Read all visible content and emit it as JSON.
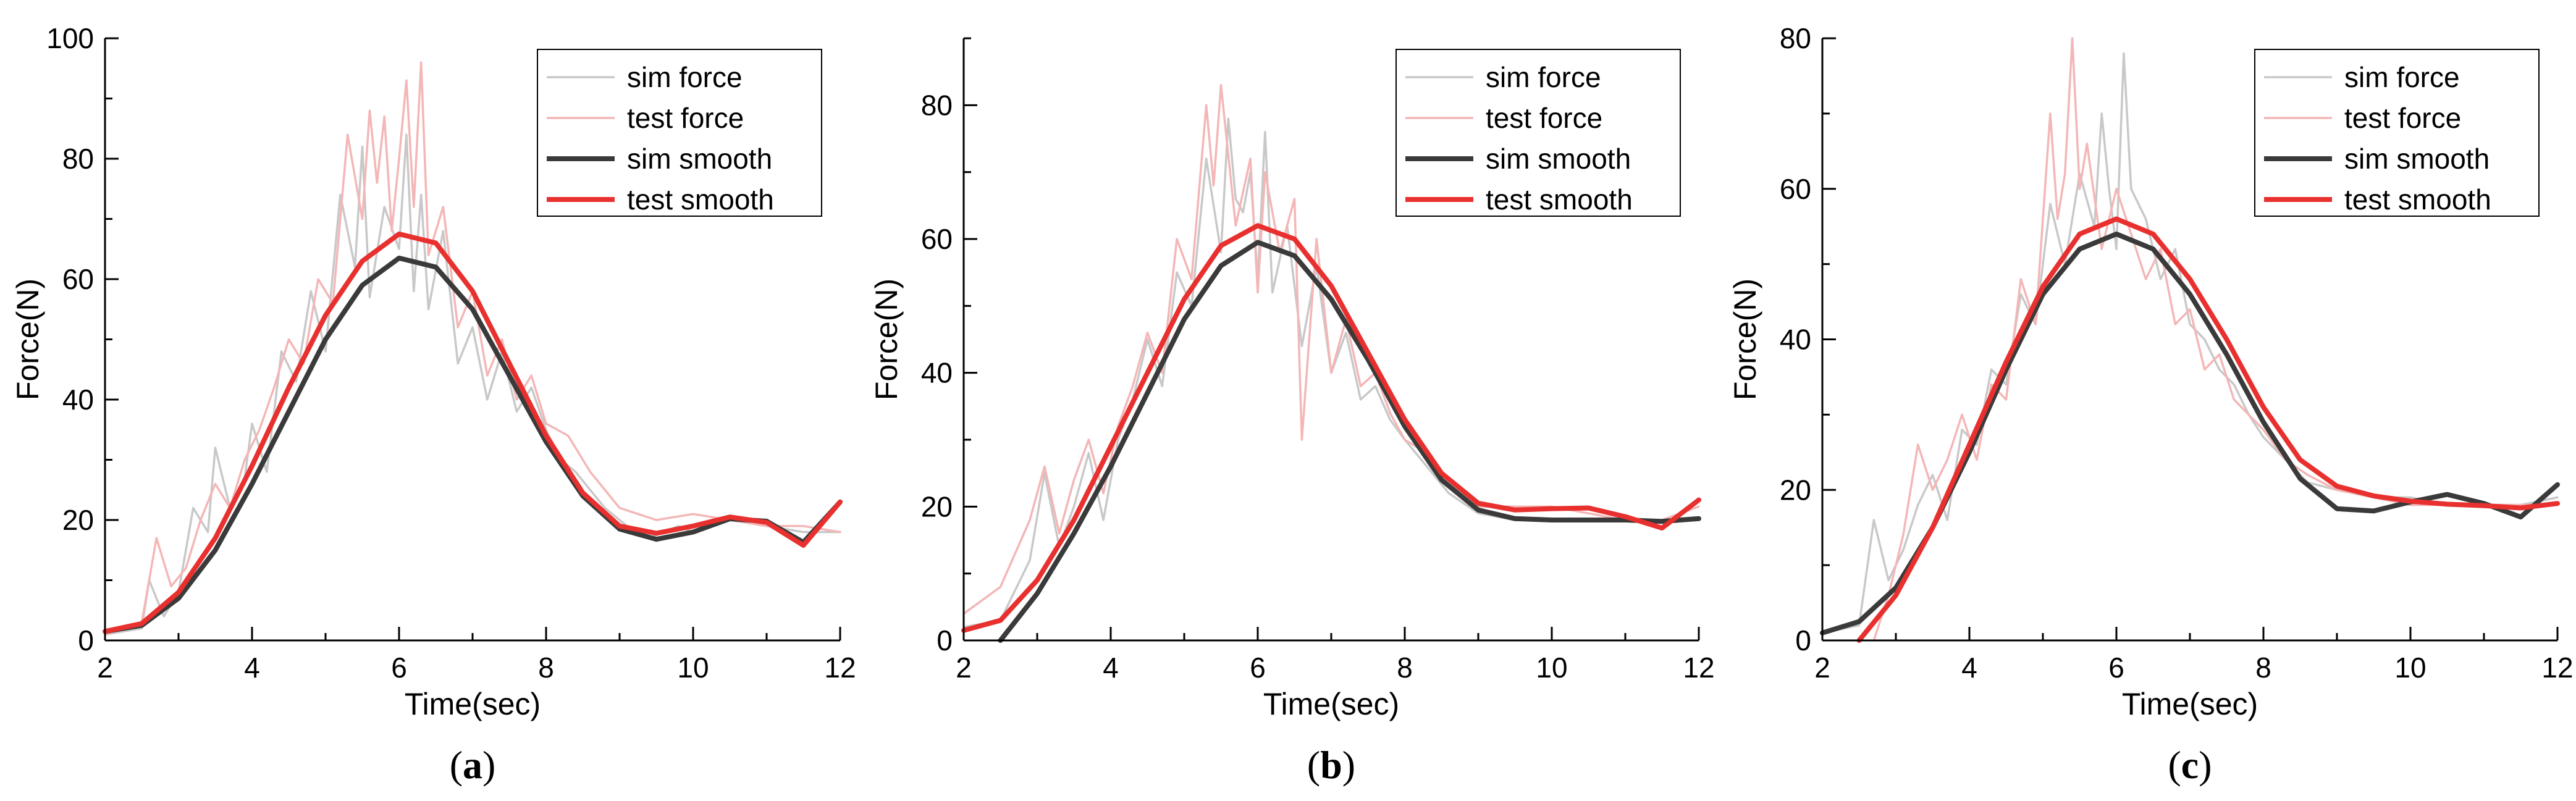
{
  "chart_data": [
    {
      "type": "line",
      "caption_letter": "a",
      "xlabel": "Time(sec)",
      "ylabel": "Force(N)",
      "xlim": [
        2,
        12
      ],
      "ylim": [
        0,
        100
      ],
      "xticks": [
        2,
        4,
        6,
        8,
        10,
        12
      ],
      "yticks": [
        0,
        20,
        40,
        60,
        80,
        100
      ],
      "legend_position": "top-right",
      "series": [
        {
          "name": "sim force",
          "color": "#c8c8c8",
          "x": [
            2,
            2.5,
            2.6,
            2.8,
            3.0,
            3.2,
            3.4,
            3.5,
            3.7,
            3.9,
            4.0,
            4.2,
            4.4,
            4.6,
            4.8,
            5.0,
            5.2,
            5.4,
            5.5,
            5.6,
            5.8,
            6.0,
            6.1,
            6.2,
            6.3,
            6.4,
            6.6,
            6.8,
            7.0,
            7.2,
            7.4,
            7.6,
            7.8,
            8.0,
            8.2,
            8.4,
            8.6,
            8.8,
            9.0,
            9.2,
            9.4,
            9.6,
            9.8,
            10.0,
            10.5,
            11.0,
            11.5,
            12.0
          ],
          "y": [
            1,
            2,
            10,
            4,
            8,
            22,
            18,
            32,
            22,
            27,
            36,
            28,
            48,
            43,
            58,
            48,
            74,
            62,
            82,
            57,
            72,
            65,
            84,
            58,
            74,
            55,
            68,
            46,
            52,
            40,
            48,
            38,
            42,
            35,
            30,
            28,
            25,
            22,
            20,
            18,
            17,
            18,
            19,
            18,
            20,
            19,
            18,
            18
          ]
        },
        {
          "name": "test force",
          "color": "#f4b6b6",
          "x": [
            2,
            2.5,
            2.7,
            2.9,
            3.1,
            3.3,
            3.5,
            3.7,
            3.9,
            4.1,
            4.3,
            4.5,
            4.7,
            4.9,
            5.1,
            5.3,
            5.5,
            5.6,
            5.7,
            5.8,
            5.9,
            6.0,
            6.1,
            6.2,
            6.3,
            6.4,
            6.6,
            6.8,
            7.0,
            7.2,
            7.4,
            7.6,
            7.8,
            8.0,
            8.3,
            8.6,
            9.0,
            9.5,
            10.0,
            10.5,
            11.0,
            11.5,
            12.0
          ],
          "y": [
            1,
            3,
            17,
            9,
            12,
            20,
            26,
            22,
            30,
            35,
            42,
            50,
            46,
            60,
            56,
            84,
            70,
            88,
            76,
            87,
            68,
            80,
            93,
            72,
            96,
            64,
            72,
            52,
            58,
            44,
            50,
            40,
            44,
            36,
            34,
            28,
            22,
            20,
            21,
            20,
            19,
            19,
            18
          ]
        },
        {
          "name": "sim smooth",
          "color": "#3a3a3a",
          "x": [
            2,
            2.5,
            3.0,
            3.5,
            4.0,
            4.5,
            5.0,
            5.5,
            6.0,
            6.5,
            7.0,
            7.5,
            8.0,
            8.5,
            9.0,
            9.5,
            10.0,
            10.5,
            11.0,
            11.5,
            12.0
          ],
          "y": [
            1.5,
            2.5,
            7,
            15,
            26,
            38,
            50,
            59,
            63.5,
            62,
            55,
            44,
            33,
            24,
            18.5,
            16.8,
            18,
            20.2,
            19.8,
            16.3,
            23
          ]
        },
        {
          "name": "test smooth",
          "color": "#e8302f",
          "x": [
            2,
            2.5,
            3.0,
            3.5,
            4.0,
            4.5,
            5.0,
            5.5,
            6.0,
            6.5,
            7.0,
            7.5,
            8.0,
            8.5,
            9.0,
            9.5,
            10.0,
            10.5,
            11.0,
            11.5,
            12.0
          ],
          "y": [
            1.5,
            2.8,
            8,
            17,
            29,
            42,
            54,
            63,
            67.5,
            66,
            58,
            46,
            34,
            24.5,
            19,
            17.8,
            19,
            20.5,
            19.6,
            15.8,
            23
          ]
        }
      ]
    },
    {
      "type": "line",
      "caption_letter": "b",
      "xlabel": "Time(sec)",
      "ylabel": "Force(N)",
      "xlim": [
        2,
        12
      ],
      "ylim": [
        0,
        90
      ],
      "xticks": [
        2,
        4,
        6,
        8,
        10,
        12
      ],
      "yticks": [
        0,
        20,
        40,
        60,
        80
      ],
      "legend_position": "top-right",
      "series": [
        {
          "name": "sim force",
          "color": "#c8c8c8",
          "x": [
            2,
            2.5,
            2.9,
            3.1,
            3.3,
            3.5,
            3.7,
            3.9,
            4.1,
            4.3,
            4.5,
            4.7,
            4.9,
            5.1,
            5.3,
            5.5,
            5.6,
            5.7,
            5.8,
            5.9,
            6.0,
            6.1,
            6.2,
            6.4,
            6.6,
            6.8,
            7.0,
            7.2,
            7.4,
            7.6,
            7.8,
            8.0,
            8.3,
            8.6,
            9.0,
            9.5,
            10.0,
            10.5,
            11.0,
            11.5,
            12.0
          ],
          "y": [
            2,
            3,
            12,
            25,
            14,
            20,
            28,
            18,
            30,
            36,
            45,
            38,
            55,
            50,
            72,
            58,
            78,
            66,
            64,
            70,
            54,
            76,
            52,
            62,
            44,
            56,
            40,
            46,
            36,
            38,
            33,
            30,
            26,
            22,
            19,
            18,
            18,
            18,
            18,
            18,
            18
          ]
        },
        {
          "name": "test force",
          "color": "#f4b6b6",
          "x": [
            2,
            2.5,
            2.9,
            3.1,
            3.3,
            3.5,
            3.7,
            3.9,
            4.1,
            4.3,
            4.5,
            4.7,
            4.9,
            5.1,
            5.3,
            5.4,
            5.5,
            5.7,
            5.9,
            6.0,
            6.1,
            6.3,
            6.5,
            6.6,
            6.8,
            7.0,
            7.2,
            7.4,
            7.6,
            7.8,
            8.0,
            8.3,
            8.6,
            9.0,
            9.5,
            10.0,
            10.5,
            11.0,
            11.5,
            12.0
          ],
          "y": [
            4,
            8,
            18,
            26,
            16,
            24,
            30,
            22,
            32,
            38,
            46,
            40,
            60,
            54,
            80,
            68,
            83,
            62,
            72,
            52,
            70,
            58,
            66,
            30,
            60,
            40,
            48,
            38,
            40,
            34,
            30,
            28,
            24,
            20,
            20,
            20,
            19,
            18,
            18,
            20
          ]
        },
        {
          "name": "sim smooth",
          "color": "#3a3a3a",
          "x": [
            2.5,
            3.0,
            3.5,
            4.0,
            4.5,
            5.0,
            5.5,
            6.0,
            6.5,
            7.0,
            7.5,
            8.0,
            8.5,
            9.0,
            9.5,
            10.0,
            10.5,
            11.0,
            11.5,
            12.0
          ],
          "y": [
            0,
            7,
            16,
            26,
            37,
            48,
            56,
            59.5,
            57.5,
            51,
            42,
            32,
            24,
            19.5,
            18.2,
            18,
            18,
            18,
            17.8,
            18.2
          ]
        },
        {
          "name": "test smooth",
          "color": "#e8302f",
          "x": [
            2,
            2.5,
            3.0,
            3.5,
            4.0,
            4.5,
            5.0,
            5.5,
            6.0,
            6.5,
            7.0,
            7.5,
            8.0,
            8.5,
            9.0,
            9.5,
            10.0,
            10.5,
            11.0,
            11.5,
            12.0
          ],
          "y": [
            1.5,
            3,
            9,
            18,
            29,
            40,
            51,
            59,
            62,
            60,
            53,
            43,
            33,
            25,
            20.5,
            19.5,
            19.7,
            19.8,
            18.5,
            16.8,
            21
          ]
        }
      ]
    },
    {
      "type": "line",
      "caption_letter": "c",
      "xlabel": "Time(sec)",
      "ylabel": "Force(N)",
      "xlim": [
        2,
        12
      ],
      "ylim": [
        0,
        80
      ],
      "xticks": [
        2,
        4,
        6,
        8,
        10,
        12
      ],
      "yticks": [
        0,
        20,
        40,
        60,
        80
      ],
      "legend_position": "top-right",
      "series": [
        {
          "name": "sim force",
          "color": "#c8c8c8",
          "x": [
            2,
            2.5,
            2.7,
            2.9,
            3.1,
            3.3,
            3.5,
            3.7,
            3.9,
            4.1,
            4.3,
            4.5,
            4.7,
            4.9,
            5.1,
            5.3,
            5.5,
            5.7,
            5.8,
            5.9,
            6.0,
            6.1,
            6.2,
            6.4,
            6.6,
            6.8,
            7.0,
            7.2,
            7.4,
            7.6,
            7.8,
            8.0,
            8.3,
            8.6,
            9.0,
            9.5,
            10.0,
            10.5,
            11.0,
            11.5,
            12.0
          ],
          "y": [
            1,
            2,
            16,
            8,
            12,
            18,
            22,
            16,
            28,
            26,
            36,
            34,
            46,
            42,
            58,
            50,
            62,
            55,
            70,
            60,
            52,
            78,
            60,
            56,
            48,
            52,
            42,
            40,
            36,
            34,
            30,
            27,
            24,
            21,
            20,
            19,
            19,
            18,
            18,
            18,
            19
          ]
        },
        {
          "name": "test force",
          "color": "#f4b6b6",
          "x": [
            2.7,
            2.9,
            3.1,
            3.3,
            3.5,
            3.7,
            3.9,
            4.1,
            4.3,
            4.5,
            4.7,
            4.9,
            5.1,
            5.2,
            5.3,
            5.4,
            5.5,
            5.6,
            5.8,
            6.0,
            6.2,
            6.4,
            6.6,
            6.8,
            7.0,
            7.2,
            7.4,
            7.6,
            7.8,
            8.0,
            8.3,
            8.6,
            9.0,
            9.5,
            10.0,
            10.5,
            11.0,
            11.5,
            12.0
          ],
          "y": [
            0,
            6,
            14,
            26,
            20,
            24,
            30,
            24,
            34,
            32,
            48,
            42,
            70,
            56,
            62,
            80,
            60,
            66,
            52,
            60,
            54,
            48,
            52,
            42,
            44,
            36,
            38,
            32,
            30,
            28,
            24,
            22,
            20,
            19,
            18,
            18,
            18,
            18,
            18
          ]
        },
        {
          "name": "sim smooth",
          "color": "#3a3a3a",
          "x": [
            2,
            2.5,
            3.0,
            3.5,
            4.0,
            4.5,
            5.0,
            5.5,
            6.0,
            6.5,
            7.0,
            7.5,
            8.0,
            8.5,
            9.0,
            9.5,
            10.0,
            10.5,
            11.0,
            11.5,
            12.0
          ],
          "y": [
            1,
            2.5,
            7,
            15,
            25,
            36,
            46,
            52,
            54,
            52,
            46,
            38,
            29,
            21.5,
            17.5,
            17.2,
            18.4,
            19.4,
            18.2,
            16.4,
            20.7
          ]
        },
        {
          "name": "test smooth",
          "color": "#e8302f",
          "x": [
            2.5,
            3.0,
            3.5,
            4.0,
            4.5,
            5.0,
            5.5,
            6.0,
            6.5,
            7.0,
            7.5,
            8.0,
            8.5,
            9.0,
            9.5,
            10.0,
            10.5,
            11.0,
            11.5,
            12.0
          ],
          "y": [
            0,
            6,
            15,
            26,
            37,
            47,
            54,
            56,
            54,
            48,
            40,
            31,
            24,
            20.5,
            19.2,
            18.5,
            18.1,
            17.9,
            17.6,
            18.2
          ]
        }
      ]
    }
  ]
}
